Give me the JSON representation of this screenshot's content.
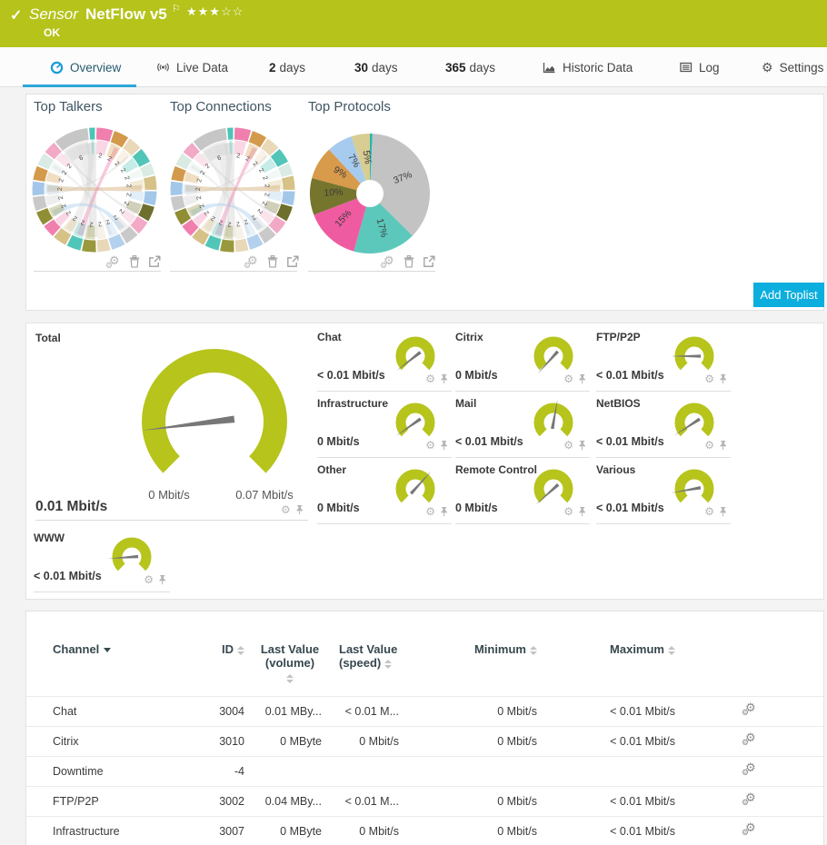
{
  "header": {
    "category": "Sensor",
    "title": "NetFlow v5",
    "status": "OK",
    "stars": "★★★☆☆",
    "rating_filled": 3,
    "rating_total": 5,
    "color": "#b5c31b"
  },
  "tabs": {
    "overview": "Overview",
    "live_data": "Live Data",
    "d2_num": "2",
    "d2": "days",
    "d30_num": "30",
    "d30": "days",
    "d365_num": "365",
    "d365": "days",
    "historic": "Historic Data",
    "log": "Log",
    "settings": "Settings"
  },
  "toplists": {
    "talkers_title": "Top Talkers",
    "connections_title": "Top Connections",
    "protocols_title": "Top Protocols",
    "add_button": "Add Toplist"
  },
  "chart_data": [
    {
      "type": "chord",
      "title": "Top Talkers",
      "note": "ring of hosts with traffic chords",
      "segment_labels": [
        "2",
        "2",
        "2",
        "2",
        "2",
        "2",
        "2",
        "2",
        "2",
        "2",
        "2",
        "2",
        "2",
        "2",
        "2",
        "2",
        "2",
        "2",
        "2",
        "2",
        "2",
        "2",
        "6"
      ],
      "palette": [
        "#4cc4b8",
        "#f07fae",
        "#d29a4a",
        "#ead9b8",
        "#52c5b9",
        "#d9ebe3",
        "#d6c287",
        "#a3c7e8",
        "#6f6f2d",
        "#f2a9c6",
        "#c9c9c9",
        "#b3d0ec",
        "#e8d8b8",
        "#99983f",
        "#52c5b9",
        "#d6c287",
        "#f07fae",
        "#8f8e35",
        "#c9c9c9",
        "#a3c7e8",
        "#d29a4a",
        "#d9ebe3",
        "#f2a9c6",
        "#c6c6c6"
      ]
    },
    {
      "type": "chord",
      "title": "Top Connections",
      "note": "ring of connections with traffic chords",
      "segment_labels": [
        "2",
        "2",
        "2",
        "2",
        "2",
        "2",
        "2",
        "2",
        "2",
        "2",
        "2",
        "2",
        "2",
        "2",
        "2",
        "2",
        "2",
        "2",
        "2",
        "2",
        "2",
        "2",
        "6"
      ],
      "palette": [
        "#4cc4b8",
        "#f07fae",
        "#d29a4a",
        "#ead9b8",
        "#52c5b9",
        "#d9ebe3",
        "#d6c287",
        "#a3c7e8",
        "#6f6f2d",
        "#f2a9c6",
        "#c9c9c9",
        "#b3d0ec",
        "#e8d8b8",
        "#99983f",
        "#52c5b9",
        "#d6c287",
        "#f07fae",
        "#8f8e35",
        "#c9c9c9",
        "#a3c7e8",
        "#d29a4a",
        "#d9ebe3",
        "#f2a9c6",
        "#c6c6c6"
      ]
    },
    {
      "type": "pie",
      "title": "Top Protocols",
      "values": [
        0.7,
        37,
        17,
        15,
        10,
        9,
        7,
        5
      ],
      "labels": [
        "",
        "37%",
        "17%",
        "15%",
        "10%",
        "9%",
        "7%",
        "5%"
      ],
      "colors": [
        "#2ab5ad",
        "#c3c3c3",
        "#5cc8bc",
        "#ef5ba1",
        "#76752e",
        "#d89a4b",
        "#a7cbee",
        "#d8cd92"
      ]
    }
  ],
  "gauges": {
    "color": "#b6c41c",
    "total": {
      "label": "Total",
      "value": "0.01 Mbit/s",
      "min_label": "0 Mbit/s",
      "max_label": "0.07 Mbit/s",
      "needle_deg": 187
    },
    "channels": [
      {
        "label": "Chat",
        "value": "< 0.01 Mbit/s",
        "needle_deg": 218
      },
      {
        "label": "Citrix",
        "value": "0 Mbit/s",
        "needle_deg": 228
      },
      {
        "label": "FTP/P2P",
        "value": "< 0.01 Mbit/s",
        "needle_deg": 180
      },
      {
        "label": "Infrastructure",
        "value": "0 Mbit/s",
        "needle_deg": 215
      },
      {
        "label": "Mail",
        "value": "< 0.01 Mbit/s",
        "needle_deg": 80
      },
      {
        "label": "NetBIOS",
        "value": "< 0.01 Mbit/s",
        "needle_deg": 213
      },
      {
        "label": "Other",
        "value": "0 Mbit/s",
        "needle_deg": 48
      },
      {
        "label": "Remote Control",
        "value": "0 Mbit/s",
        "needle_deg": 222
      },
      {
        "label": "Various",
        "value": "< 0.01 Mbit/s",
        "needle_deg": 190
      },
      {
        "label": "WWW",
        "value": "< 0.01 Mbit/s",
        "needle_deg": 184
      }
    ]
  },
  "table": {
    "headers": {
      "channel": "Channel",
      "id": "ID",
      "volume1": "Last Value",
      "volume2": "(volume)",
      "speed1": "Last Value",
      "speed2": "(speed)",
      "min": "Minimum",
      "max": "Maximum"
    },
    "rows": [
      {
        "channel": "Chat",
        "id": "3004",
        "volume": "0.01 MBy...",
        "speed": "< 0.01 M...",
        "min": "0 Mbit/s",
        "max": "< 0.01 Mbit/s"
      },
      {
        "channel": "Citrix",
        "id": "3010",
        "volume": "0 MByte",
        "speed": "0 Mbit/s",
        "min": "0 Mbit/s",
        "max": "< 0.01 Mbit/s"
      },
      {
        "channel": "Downtime",
        "id": "-4",
        "volume": "",
        "speed": "",
        "min": "",
        "max": ""
      },
      {
        "channel": "FTP/P2P",
        "id": "3002",
        "volume": "0.04 MBy...",
        "speed": "< 0.01 M...",
        "min": "0 Mbit/s",
        "max": "< 0.01 Mbit/s"
      },
      {
        "channel": "Infrastructure",
        "id": "3007",
        "volume": "0 MByte",
        "speed": "0 Mbit/s",
        "min": "0 Mbit/s",
        "max": "< 0.01 Mbit/s"
      }
    ]
  }
}
